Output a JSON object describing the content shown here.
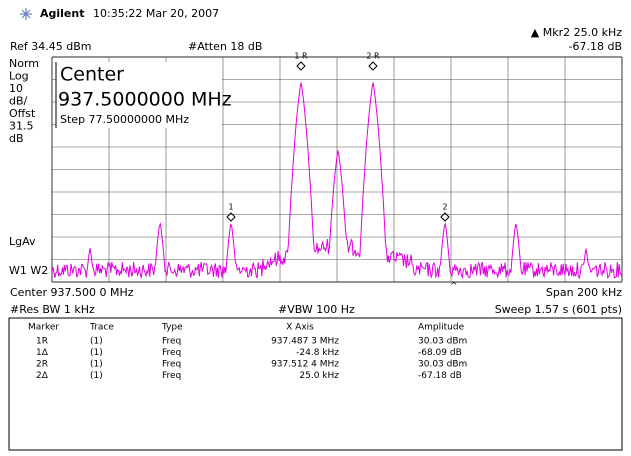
{
  "header": {
    "brand": "Agilent",
    "time": "10:35:22  Mar 20, 2007"
  },
  "marker_readout": {
    "label": "▲ Mkr2  25.0 kHz",
    "value": "-67.18 dB"
  },
  "ref": "Ref 34.45 dBm",
  "atten": "#Atten 18 dB",
  "side_labels": [
    "Norm",
    "Log",
    "10",
    "dB/",
    "Offst",
    "31.5",
    "dB"
  ],
  "detector": "LgAv",
  "traces": "W1  W2",
  "center_box": {
    "title": "Center",
    "frequency": "937.5000000 MHz",
    "step": "Step 77.50000000 MHz"
  },
  "markers": [
    "1 R",
    "2 R",
    "1",
    "2"
  ],
  "footer": {
    "center": "Center 937.500 0 MHz",
    "span": "Span 200 kHz",
    "res_bw": "#Res BW 1 kHz",
    "vbw": "#VBW 100 Hz",
    "sweep": "Sweep 1.57 s (601 pts)"
  },
  "table": {
    "headers": [
      "Marker",
      "Trace",
      "Type",
      "X Axis",
      "Amplitude"
    ],
    "rows": [
      [
        "1R",
        "(1)",
        "Freq",
        "937.487 3 MHz",
        "30.03 dBm"
      ],
      [
        "1Δ",
        "(1)",
        "Freq",
        "-24.8 kHz",
        "-68.09 dB"
      ],
      [
        "2R",
        "(1)",
        "Freq",
        "937.512 4 MHz",
        "30.03 dBm"
      ],
      [
        "2Δ",
        "(1)",
        "Freq",
        "25.0 kHz",
        "-67.18 dB"
      ]
    ]
  }
}
